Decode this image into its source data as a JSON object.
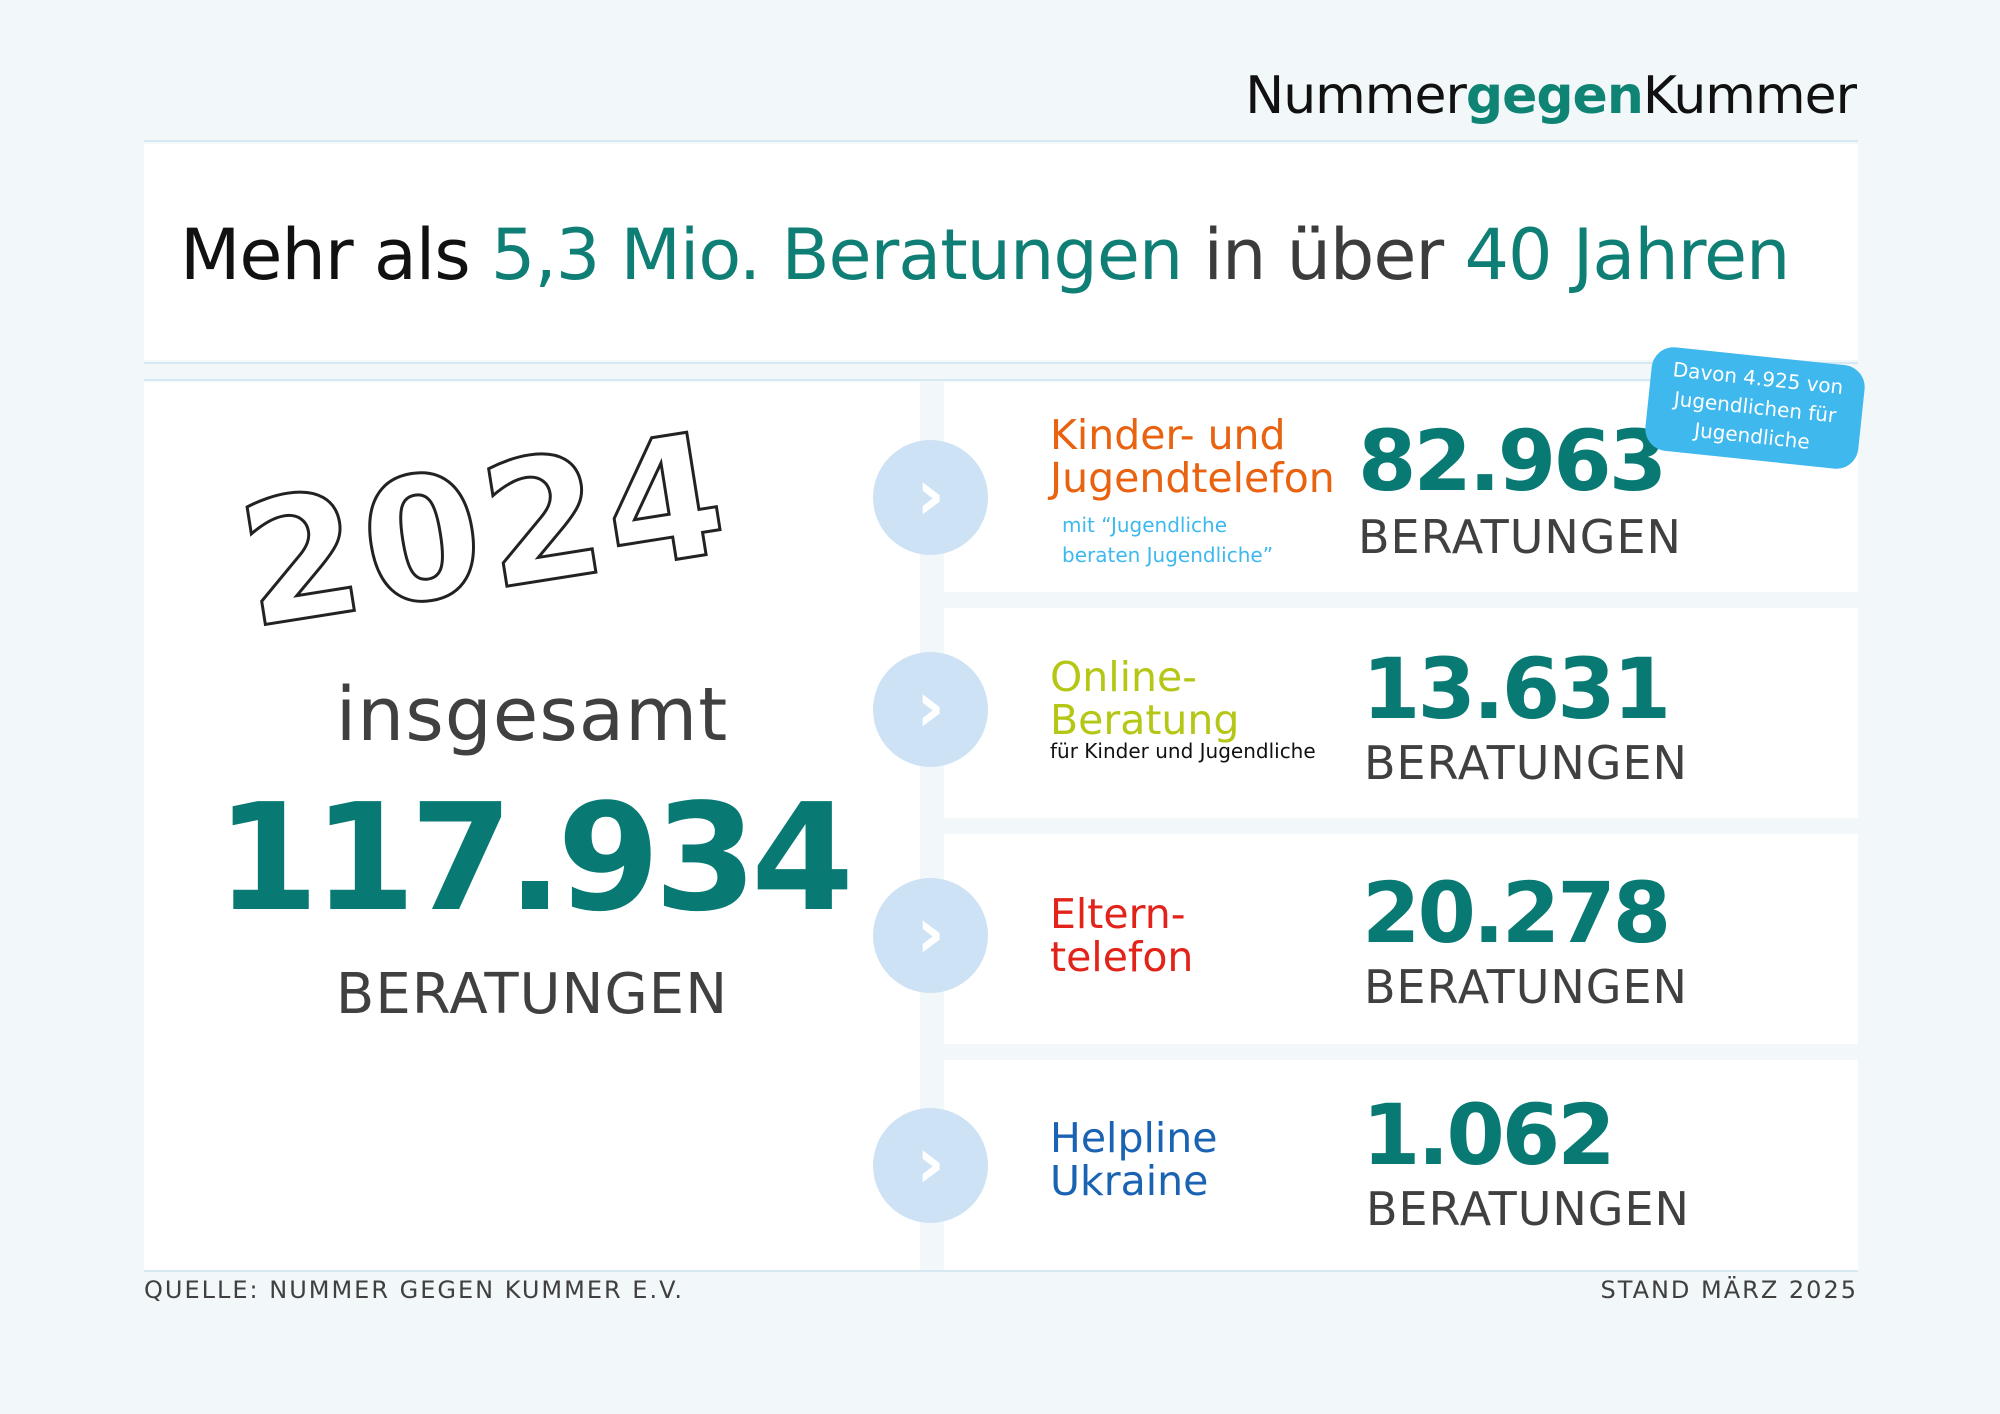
{
  "logo": {
    "part1": "Nummer",
    "part2": "gegen",
    "part3": "Kummer"
  },
  "headline": {
    "part1": "Mehr als ",
    "part2": "5,3 Mio. Beratungen",
    "part3": " in über ",
    "part4": "40 Jahren"
  },
  "summary": {
    "year": "2024",
    "label": "insgesamt",
    "value": "117.934",
    "unit": "BERATUNGEN"
  },
  "badge": {
    "text": "Davon 4.925 von Jugendlichen für Jugendliche"
  },
  "services": [
    {
      "line1": "Kinder- und",
      "line2": "Jugendtelefon",
      "sub1": "mit “Jugendliche",
      "sub2": "beraten Jugendliche”",
      "value": "82.963",
      "unit": "BERATUNGEN",
      "arrow": "›"
    },
    {
      "line1": "Online-",
      "line2": "Beratung",
      "sub1": "für Kinder und Jugendliche",
      "value": "13.631",
      "unit": "BERATUNGEN",
      "arrow": "›"
    },
    {
      "line1": "Eltern-",
      "line2": "telefon",
      "value": "20.278",
      "unit": "BERATUNGEN",
      "arrow": "›"
    },
    {
      "line1": "Helpline",
      "line2": "Ukraine",
      "value": "1.062",
      "unit": "BERATUNGEN",
      "arrow": "›"
    }
  ],
  "colors": {
    "teal": "#087a73",
    "orange": "#e8620f",
    "lime": "#b5c716",
    "red": "#e2231a",
    "blue": "#1a63b3",
    "lightblue": "#3fb8ee"
  },
  "footer": {
    "source": "QUELLE: NUMMER GEGEN KUMMER E.V.",
    "date": "STAND MÄRZ 2025"
  }
}
